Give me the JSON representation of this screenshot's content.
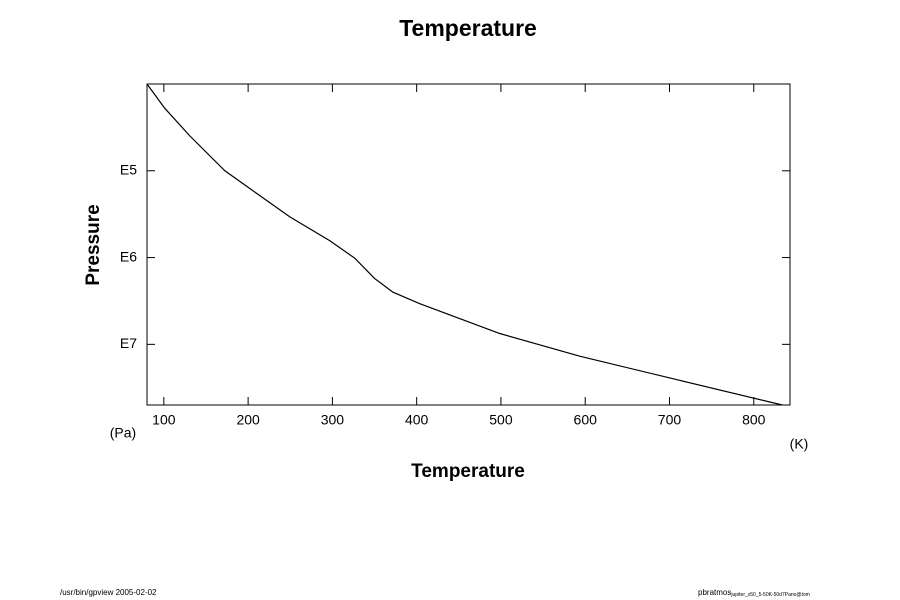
{
  "chart_data": {
    "type": "line",
    "title": "Temperature",
    "x_label": "Temperature",
    "y_label": "Pressure",
    "x_unit": "(K)",
    "y_unit": "(Pa)",
    "footer_left": "/usr/bin/gpview 2005-02-02",
    "footer_right": "pbratmos",
    "footer_right_sub": "jupiter_x50_5-50K-50d7Pano@tom",
    "log_y": true,
    "y_inverted": true,
    "grid": false,
    "color": "#000000",
    "x": [
      80,
      101,
      130.8,
      172.4,
      202,
      249.5,
      297,
      326.7,
      350,
      371.6,
      403.7,
      498.6,
      593.5,
      712,
      834
    ],
    "values": [
      10000,
      19000,
      39600,
      100000,
      160000,
      340000,
      640000,
      1020000,
      1740000,
      2500000,
      3400000,
      7500000,
      13700000,
      26000000,
      50000000
    ],
    "xlim": [
      80,
      843
    ],
    "xticks": [
      100,
      200,
      300,
      400,
      500,
      600,
      700,
      800
    ],
    "ylim": [
      10000,
      50000000
    ],
    "yticks": [
      {
        "value": 100000,
        "label": "E5"
      },
      {
        "value": 1000000,
        "label": "E6"
      },
      {
        "value": 10000000,
        "label": "E7"
      }
    ]
  }
}
